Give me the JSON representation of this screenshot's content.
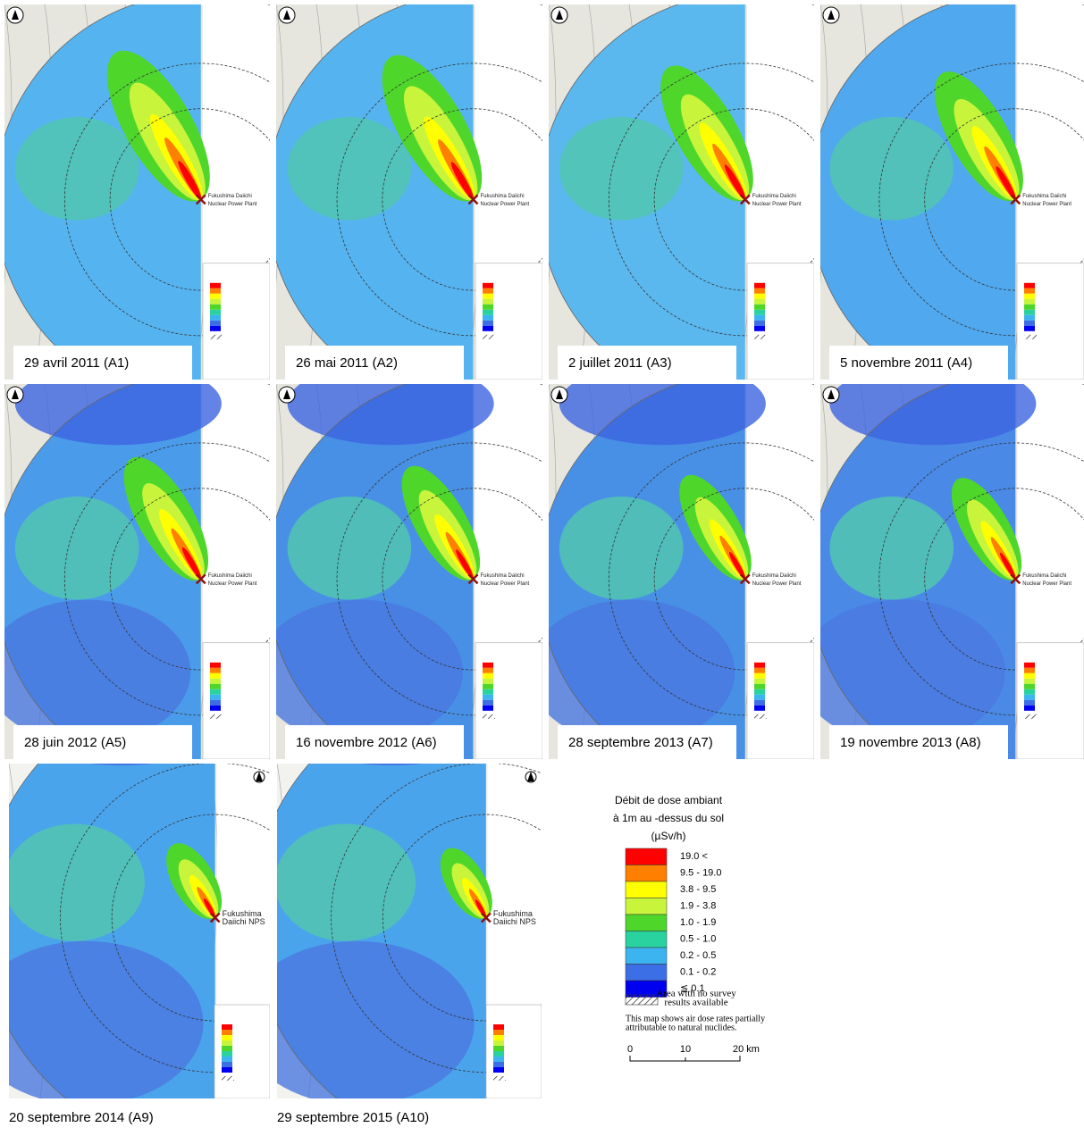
{
  "panels": [
    {
      "caption": "29 avril  2011 (A1)",
      "plant_label": [
        "Fukushima Daiichi",
        "Nuclear Power Plant"
      ]
    },
    {
      "caption": "26 mai  2011 (A2)",
      "plant_label": [
        "Fukushima Daiichi",
        "Nuclear Power Plant"
      ]
    },
    {
      "caption": "2 juillet  2011 (A3)",
      "plant_label": [
        "Fukushima Daiichi",
        "Nuclear Power Plant"
      ]
    },
    {
      "caption": "5 novembre  2011 (A4)",
      "plant_label": [
        "Fukushima Daiichi",
        "Nuclear Power Plant"
      ]
    },
    {
      "caption": "28 juin  2012 (A5)",
      "plant_label": [
        "Fukushima Daiichi",
        "Nuclear Power Plant"
      ]
    },
    {
      "caption": "16 novembre 2012 (A6)",
      "plant_label": [
        "Fukushima Daiichi",
        "Nuclear Power Plant"
      ]
    },
    {
      "caption": "28 septembre  2013 (A7)",
      "plant_label": [
        "Fukushima Daiichi",
        "Nuclear Power Plant"
      ]
    },
    {
      "caption": "19 novembre  2013 (A8)",
      "plant_label": [
        "Fukushima Daiichi",
        "Nuclear Power Plant"
      ]
    },
    {
      "caption": "20 septembre 2014 (A9)",
      "plant_label": [
        "Fukushima",
        "Daiichi NPS"
      ]
    },
    {
      "caption": "29 septembre 2015 (A10)",
      "plant_label": [
        "Fukushima",
        "Daiichi NPS"
      ]
    }
  ],
  "legend": {
    "title": [
      "Débit de dose ambiant",
      "à 1m au -dessus du sol",
      "(µSv/h)"
    ],
    "entries": [
      {
        "label": "19.0  <",
        "color": "#ff0000"
      },
      {
        "label": "9.5  -  19.0",
        "color": "#ff8000"
      },
      {
        "label": "3.8  -  9.5",
        "color": "#ffff00"
      },
      {
        "label": "1.9  -  3.8",
        "color": "#c8f53c"
      },
      {
        "label": "1.0  -  1.9",
        "color": "#4ed62a"
      },
      {
        "label": "0.5  -  1.0",
        "color": "#2ad2a0"
      },
      {
        "label": "0.2  -  0.5",
        "color": "#3cb4f0"
      },
      {
        "label": "0.1  -  0.2",
        "color": "#3c6ee6"
      },
      {
        "label": "≦  0.1",
        "color": "#0000f0"
      }
    ],
    "no_survey": [
      "Area with no survey",
      "results available"
    ],
    "note": [
      "This map shows air dose rates partially",
      "attributable to natural nuclides."
    ],
    "scale": [
      "0",
      "10",
      "20 km"
    ]
  }
}
